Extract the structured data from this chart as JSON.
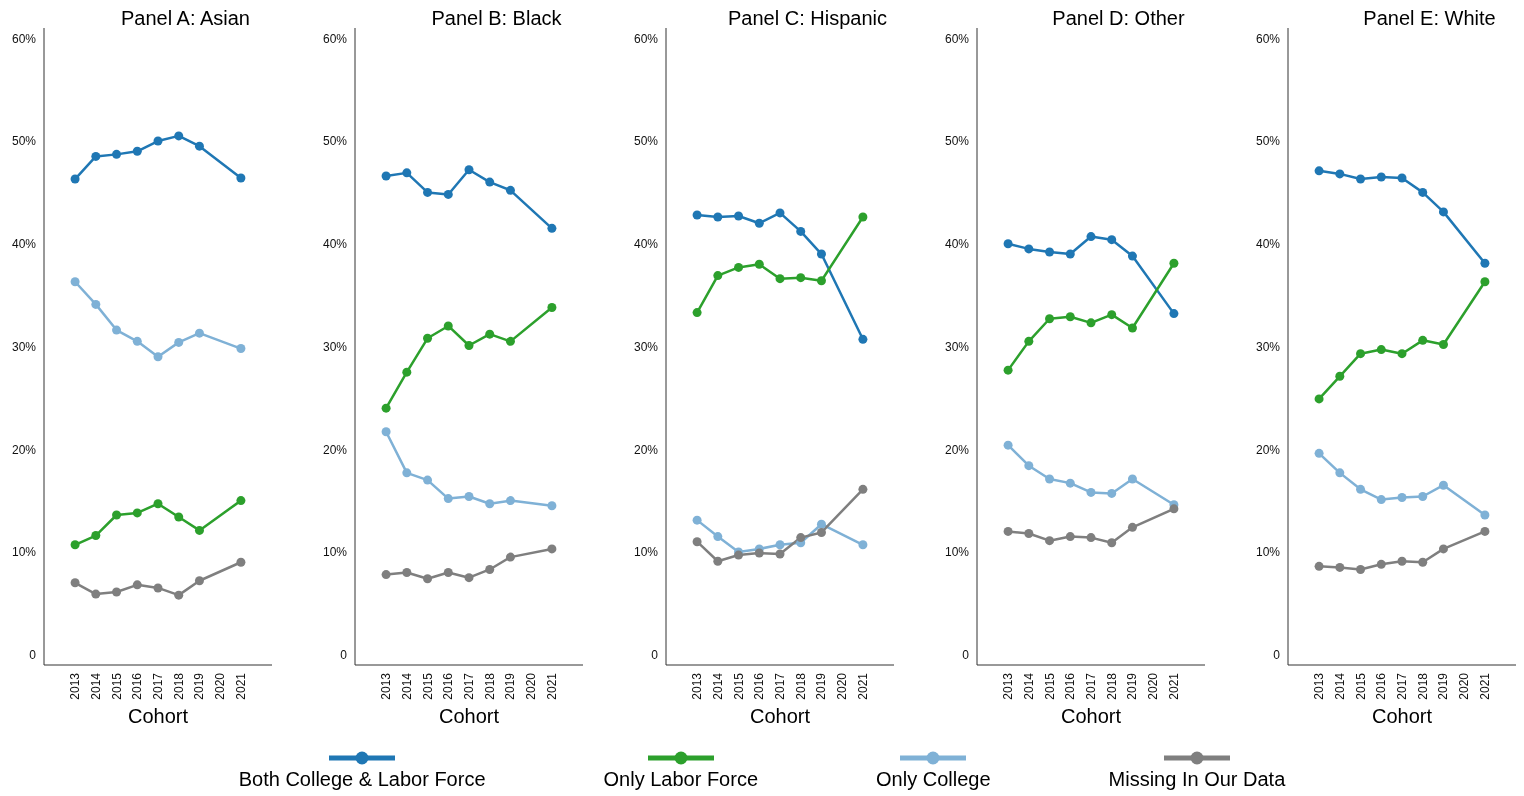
{
  "chart_data": [
    {
      "type": "line",
      "title": "Panel A: Asian",
      "xlabel": "Cohort",
      "x": [
        2013,
        2014,
        2015,
        2016,
        2017,
        2018,
        2019,
        2021
      ],
      "xlim": [
        2011.5,
        2022.5
      ],
      "xticks": [
        2013,
        2014,
        2015,
        2016,
        2017,
        2018,
        2019,
        2020,
        2021
      ],
      "ylim": [
        -1,
        61
      ],
      "yticks": [
        {
          "value": 0,
          "label": "0"
        },
        {
          "value": 10,
          "label": "10%"
        },
        {
          "value": 20,
          "label": "20%"
        },
        {
          "value": 30,
          "label": "30%"
        },
        {
          "value": 40,
          "label": "40%"
        },
        {
          "value": 50,
          "label": "50%"
        },
        {
          "value": 60,
          "label": "60%"
        }
      ],
      "marker": "circle",
      "line_style": "solid",
      "legend": "bottom",
      "series": [
        {
          "name": "Both College & Labor Force",
          "color": "#1f77b4",
          "values": [
            46.3,
            48.5,
            48.7,
            49.0,
            50.0,
            50.5,
            49.5,
            46.4
          ]
        },
        {
          "name": "Only Labor Force",
          "color": "#2ca02c",
          "values": [
            10.7,
            11.6,
            13.6,
            13.8,
            14.7,
            13.4,
            12.1,
            15.0
          ]
        },
        {
          "name": "Only College",
          "color": "#7fb1d6",
          "values": [
            36.3,
            34.1,
            31.6,
            30.5,
            29.0,
            30.4,
            31.3,
            29.8
          ]
        },
        {
          "name": "Missing In Our Data",
          "color": "#7f7f7f",
          "values": [
            7.0,
            5.9,
            6.1,
            6.8,
            6.5,
            5.8,
            7.2,
            9.0
          ]
        }
      ]
    },
    {
      "type": "line",
      "title": "Panel B: Black",
      "xlabel": "Cohort",
      "x": [
        2013,
        2014,
        2015,
        2016,
        2017,
        2018,
        2019,
        2021
      ],
      "xlim": [
        2011.5,
        2022.5
      ],
      "xticks": [
        2013,
        2014,
        2015,
        2016,
        2017,
        2018,
        2019,
        2020,
        2021
      ],
      "ylim": [
        -1,
        61
      ],
      "yticks": [
        {
          "value": 0,
          "label": "0"
        },
        {
          "value": 10,
          "label": "10%"
        },
        {
          "value": 20,
          "label": "20%"
        },
        {
          "value": 30,
          "label": "30%"
        },
        {
          "value": 40,
          "label": "40%"
        },
        {
          "value": 50,
          "label": "50%"
        },
        {
          "value": 60,
          "label": "60%"
        }
      ],
      "marker": "circle",
      "line_style": "solid",
      "series": [
        {
          "color": "#1f77b4",
          "values": [
            46.6,
            46.9,
            45.0,
            44.8,
            47.2,
            46.0,
            45.2,
            41.5
          ]
        },
        {
          "color": "#2ca02c",
          "values": [
            24.0,
            27.5,
            30.8,
            32.0,
            30.1,
            31.2,
            30.5,
            33.8
          ]
        },
        {
          "color": "#7fb1d6",
          "values": [
            21.7,
            17.7,
            17.0,
            15.2,
            15.4,
            14.7,
            15.0,
            14.5
          ]
        },
        {
          "color": "#7f7f7f",
          "values": [
            7.8,
            8.0,
            7.4,
            8.0,
            7.5,
            8.3,
            9.5,
            10.3
          ]
        }
      ]
    },
    {
      "type": "line",
      "title": "Panel C: Hispanic",
      "xlabel": "Cohort",
      "x": [
        2013,
        2014,
        2015,
        2016,
        2017,
        2018,
        2019,
        2021
      ],
      "xlim": [
        2011.5,
        2022.5
      ],
      "xticks": [
        2013,
        2014,
        2015,
        2016,
        2017,
        2018,
        2019,
        2020,
        2021
      ],
      "ylim": [
        -1,
        61
      ],
      "yticks": [
        {
          "value": 0,
          "label": "0"
        },
        {
          "value": 10,
          "label": "10%"
        },
        {
          "value": 20,
          "label": "20%"
        },
        {
          "value": 30,
          "label": "30%"
        },
        {
          "value": 40,
          "label": "40%"
        },
        {
          "value": 50,
          "label": "50%"
        },
        {
          "value": 60,
          "label": "60%"
        }
      ],
      "marker": "circle",
      "line_style": "solid",
      "series": [
        {
          "color": "#1f77b4",
          "values": [
            42.8,
            42.6,
            42.7,
            42.0,
            43.0,
            41.2,
            39.0,
            30.7
          ]
        },
        {
          "color": "#2ca02c",
          "values": [
            33.3,
            36.9,
            37.7,
            38.0,
            36.6,
            36.7,
            36.4,
            42.6
          ]
        },
        {
          "color": "#7fb1d6",
          "values": [
            13.1,
            11.5,
            10.0,
            10.3,
            10.7,
            10.9,
            12.7,
            10.7
          ]
        },
        {
          "color": "#7f7f7f",
          "values": [
            11.0,
            9.1,
            9.7,
            9.9,
            9.8,
            11.4,
            11.9,
            16.1
          ]
        }
      ]
    },
    {
      "type": "line",
      "title": "Panel D: Other",
      "xlabel": "Cohort",
      "x": [
        2013,
        2014,
        2015,
        2016,
        2017,
        2018,
        2019,
        2021
      ],
      "xlim": [
        2011.5,
        2022.5
      ],
      "xticks": [
        2013,
        2014,
        2015,
        2016,
        2017,
        2018,
        2019,
        2020,
        2021
      ],
      "ylim": [
        -1,
        61
      ],
      "yticks": [
        {
          "value": 0,
          "label": "0"
        },
        {
          "value": 10,
          "label": "10%"
        },
        {
          "value": 20,
          "label": "20%"
        },
        {
          "value": 30,
          "label": "30%"
        },
        {
          "value": 40,
          "label": "40%"
        },
        {
          "value": 50,
          "label": "50%"
        },
        {
          "value": 60,
          "label": "60%"
        }
      ],
      "marker": "circle",
      "line_style": "solid",
      "series": [
        {
          "color": "#1f77b4",
          "values": [
            40.0,
            39.5,
            39.2,
            39.0,
            40.7,
            40.4,
            38.8,
            33.2
          ]
        },
        {
          "color": "#2ca02c",
          "values": [
            27.7,
            30.5,
            32.7,
            32.9,
            32.3,
            33.1,
            31.8,
            38.1
          ]
        },
        {
          "color": "#7fb1d6",
          "values": [
            20.4,
            18.4,
            17.1,
            16.7,
            15.8,
            15.7,
            17.1,
            14.6
          ]
        },
        {
          "color": "#7f7f7f",
          "values": [
            12.0,
            11.8,
            11.1,
            11.5,
            11.4,
            10.9,
            12.4,
            14.2
          ]
        }
      ]
    },
    {
      "type": "line",
      "title": "Panel E: White",
      "xlabel": "Cohort",
      "x": [
        2013,
        2014,
        2015,
        2016,
        2017,
        2018,
        2019,
        2021
      ],
      "xlim": [
        2011.5,
        2022.5
      ],
      "xticks": [
        2013,
        2014,
        2015,
        2016,
        2017,
        2018,
        2019,
        2020,
        2021
      ],
      "ylim": [
        -1,
        61
      ],
      "yticks": [
        {
          "value": 0,
          "label": "0"
        },
        {
          "value": 10,
          "label": "10%"
        },
        {
          "value": 20,
          "label": "20%"
        },
        {
          "value": 30,
          "label": "30%"
        },
        {
          "value": 40,
          "label": "40%"
        },
        {
          "value": 50,
          "label": "50%"
        },
        {
          "value": 60,
          "label": "60%"
        }
      ],
      "marker": "circle",
      "line_style": "solid",
      "series": [
        {
          "color": "#1f77b4",
          "values": [
            47.1,
            46.8,
            46.3,
            46.5,
            46.4,
            45.0,
            43.1,
            38.1
          ]
        },
        {
          "color": "#2ca02c",
          "values": [
            24.9,
            27.1,
            29.3,
            29.7,
            29.3,
            30.6,
            30.2,
            36.3
          ]
        },
        {
          "color": "#7fb1d6",
          "values": [
            19.6,
            17.7,
            16.1,
            15.1,
            15.3,
            15.4,
            16.5,
            13.6
          ]
        },
        {
          "color": "#7f7f7f",
          "values": [
            8.6,
            8.5,
            8.3,
            8.8,
            9.1,
            9.0,
            10.3,
            12.0
          ]
        }
      ]
    }
  ]
}
